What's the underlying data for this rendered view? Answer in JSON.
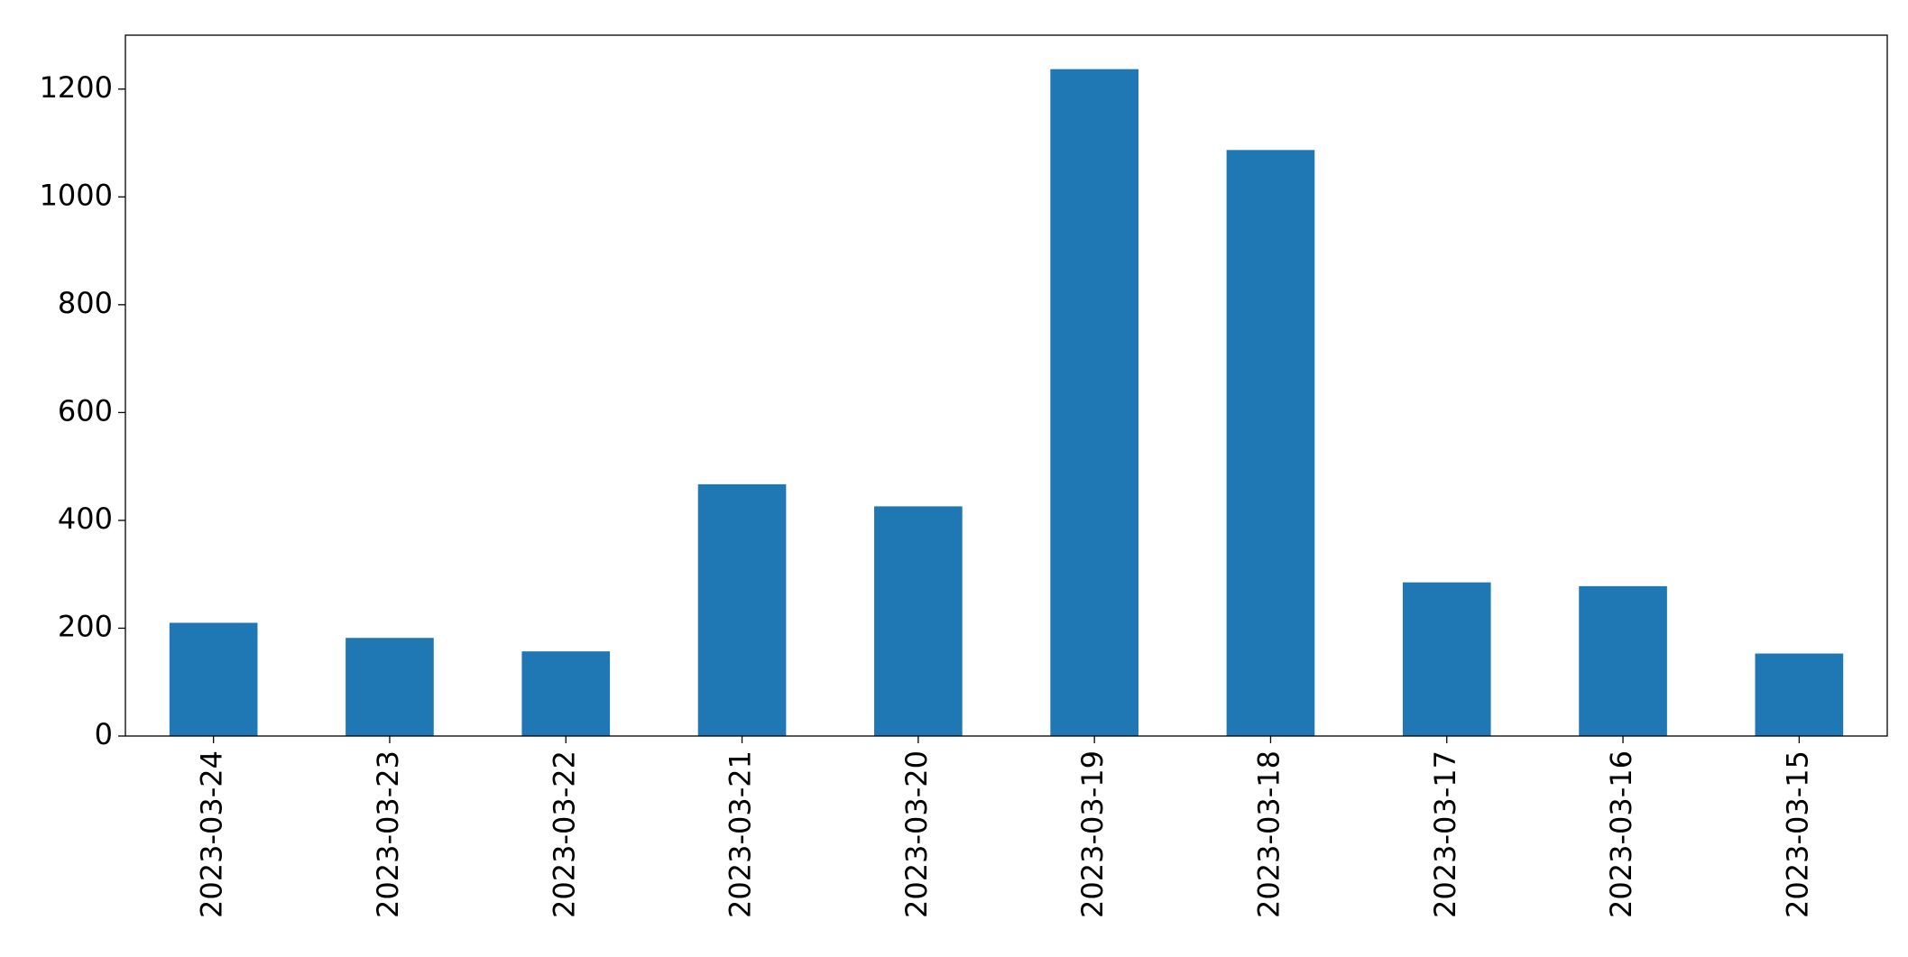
{
  "chart_data": {
    "type": "bar",
    "categories": [
      "2023-03-24",
      "2023-03-23",
      "2023-03-22",
      "2023-03-21",
      "2023-03-20",
      "2023-03-19",
      "2023-03-18",
      "2023-03-17",
      "2023-03-16",
      "2023-03-15"
    ],
    "values": [
      210,
      182,
      157,
      467,
      426,
      1237,
      1087,
      285,
      278,
      153
    ],
    "color": "#1f77b4",
    "ylim": [
      0,
      1300
    ],
    "yticks": [
      0,
      200,
      400,
      600,
      800,
      1000,
      1200
    ],
    "grid": false
  }
}
